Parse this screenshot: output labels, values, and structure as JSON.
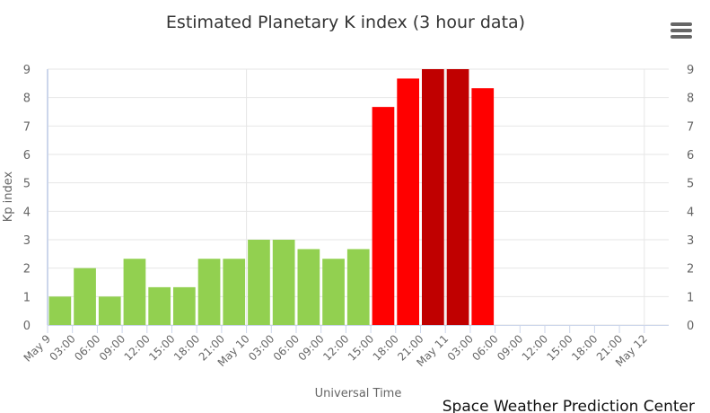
{
  "title": "Estimated Planetary K index (3 hour data)",
  "credit": "Space Weather Prediction Center",
  "menu_icon": "hamburger-menu-icon",
  "colors": {
    "green": "#92d050",
    "red": "#ff0000",
    "dark_red": "#c00000",
    "grid": "#e6e6e6",
    "axis": "#ccd6eb"
  },
  "chart_data": {
    "type": "bar",
    "title": "Estimated Planetary K index (3 hour data)",
    "xlabel": "Universal Time",
    "ylabel": "Kp index",
    "ylim": [
      0,
      9
    ],
    "yticks": [
      0,
      1,
      2,
      3,
      4,
      5,
      6,
      7,
      8,
      9
    ],
    "grid": true,
    "legend": null,
    "x_tick_labels": [
      "May 9",
      "03:00",
      "06:00",
      "09:00",
      "12:00",
      "15:00",
      "18:00",
      "21:00",
      "May 10",
      "03:00",
      "06:00",
      "09:00",
      "12:00",
      "15:00",
      "18:00",
      "21:00",
      "May 11",
      "03:00",
      "06:00",
      "09:00",
      "12:00",
      "15:00",
      "18:00",
      "21:00",
      "May 12"
    ],
    "categories": [
      "May 9 00:00",
      "May 9 03:00",
      "May 9 06:00",
      "May 9 09:00",
      "May 9 12:00",
      "May 9 15:00",
      "May 9 18:00",
      "May 9 21:00",
      "May 10 00:00",
      "May 10 03:00",
      "May 10 06:00",
      "May 10 09:00",
      "May 10 12:00",
      "May 10 15:00",
      "May 10 18:00",
      "May 10 21:00",
      "May 11 00:00",
      "May 11 03:00"
    ],
    "values": [
      1,
      2,
      1,
      2.33,
      1.33,
      1.33,
      2.33,
      2.33,
      3,
      3,
      2.67,
      2.33,
      2.67,
      7.67,
      8.67,
      9,
      9,
      8.33
    ],
    "bar_colors": [
      "#92d050",
      "#92d050",
      "#92d050",
      "#92d050",
      "#92d050",
      "#92d050",
      "#92d050",
      "#92d050",
      "#92d050",
      "#92d050",
      "#92d050",
      "#92d050",
      "#92d050",
      "#ff0000",
      "#ff0000",
      "#c00000",
      "#c00000",
      "#ff0000"
    ],
    "secondary_y_axis": true
  }
}
